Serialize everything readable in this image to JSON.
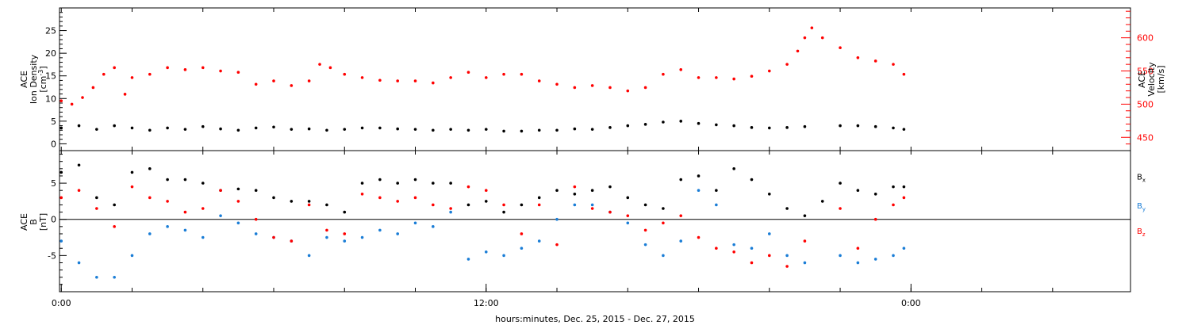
{
  "chart_data": [
    {
      "type": "scatter",
      "panel": "top",
      "left_axis": {
        "label_lines": [
          "ACE",
          "Ion Density"
        ],
        "unit_text": "[cm",
        "unit_sup": "-3",
        "ylim": [
          -1.5,
          30
        ],
        "ticks": [
          0,
          5,
          10,
          15,
          20,
          25
        ],
        "tick_labels": [
          "0",
          "5",
          "10",
          "15",
          "20",
          "25"
        ]
      },
      "right_axis": {
        "label_lines": [
          "ACE",
          "Velocity",
          "[km/s]"
        ],
        "ylim": [
          430,
          645
        ],
        "ticks": [
          450,
          500,
          550,
          600
        ],
        "tick_labels": [
          "450",
          "500",
          "550",
          "600"
        ]
      },
      "series": [
        {
          "color": "#000000",
          "axis": "left",
          "points": [
            [
              0.0,
              3.5
            ],
            [
              0.5,
              4.0
            ],
            [
              1.0,
              3.2
            ],
            [
              1.5,
              4.0
            ],
            [
              2.0,
              3.5
            ],
            [
              2.5,
              3.0
            ],
            [
              3.0,
              3.5
            ],
            [
              3.5,
              3.2
            ],
            [
              4.0,
              3.8
            ],
            [
              4.5,
              3.3
            ],
            [
              5.0,
              3.0
            ],
            [
              5.5,
              3.5
            ],
            [
              6.0,
              3.7
            ],
            [
              6.5,
              3.2
            ],
            [
              7.0,
              3.3
            ],
            [
              7.5,
              3.0
            ],
            [
              8.0,
              3.2
            ],
            [
              8.5,
              3.5
            ],
            [
              9.0,
              3.5
            ],
            [
              9.5,
              3.3
            ],
            [
              10.0,
              3.2
            ],
            [
              10.5,
              3.0
            ],
            [
              11.0,
              3.2
            ],
            [
              11.5,
              3.0
            ],
            [
              12.0,
              3.2
            ],
            [
              12.5,
              2.8
            ],
            [
              13.0,
              2.8
            ],
            [
              13.5,
              3.0
            ],
            [
              14.0,
              3.0
            ],
            [
              14.5,
              3.3
            ],
            [
              15.0,
              3.2
            ],
            [
              15.5,
              3.6
            ],
            [
              16.0,
              4.0
            ],
            [
              16.5,
              4.3
            ],
            [
              17.0,
              4.8
            ],
            [
              17.5,
              5.0
            ],
            [
              18.0,
              4.5
            ],
            [
              18.5,
              4.2
            ],
            [
              19.0,
              4.0
            ],
            [
              19.5,
              3.6
            ],
            [
              20.0,
              3.5
            ],
            [
              20.5,
              3.6
            ],
            [
              21.0,
              3.8
            ],
            [
              22.0,
              4.0
            ],
            [
              22.5,
              4.0
            ],
            [
              23.0,
              3.8
            ],
            [
              23.5,
              3.5
            ],
            [
              23.8,
              3.2
            ]
          ]
        },
        {
          "color": "#ff0000",
          "axis": "right",
          "points": [
            [
              0.0,
              505
            ],
            [
              0.3,
              500
            ],
            [
              0.6,
              510
            ],
            [
              0.9,
              525
            ],
            [
              1.2,
              545
            ],
            [
              1.5,
              555
            ],
            [
              1.8,
              515
            ],
            [
              2.0,
              540
            ],
            [
              2.5,
              545
            ],
            [
              3.0,
              555
            ],
            [
              3.5,
              552
            ],
            [
              4.0,
              555
            ],
            [
              4.5,
              550
            ],
            [
              5.0,
              548
            ],
            [
              5.5,
              530
            ],
            [
              6.0,
              535
            ],
            [
              6.5,
              528
            ],
            [
              7.0,
              535
            ],
            [
              7.3,
              560
            ],
            [
              7.6,
              555
            ],
            [
              8.0,
              545
            ],
            [
              8.5,
              540
            ],
            [
              9.0,
              536
            ],
            [
              9.5,
              535
            ],
            [
              10.0,
              535
            ],
            [
              10.5,
              532
            ],
            [
              11.0,
              540
            ],
            [
              11.5,
              548
            ],
            [
              12.0,
              540
            ],
            [
              12.5,
              545
            ],
            [
              13.0,
              545
            ],
            [
              13.5,
              535
            ],
            [
              14.0,
              530
            ],
            [
              14.5,
              525
            ],
            [
              15.0,
              528
            ],
            [
              15.5,
              525
            ],
            [
              16.0,
              520
            ],
            [
              16.5,
              525
            ],
            [
              17.0,
              545
            ],
            [
              17.5,
              552
            ],
            [
              18.0,
              540
            ],
            [
              18.5,
              540
            ],
            [
              19.0,
              538
            ],
            [
              19.5,
              542
            ],
            [
              20.0,
              550
            ],
            [
              20.5,
              560
            ],
            [
              20.8,
              580
            ],
            [
              21.0,
              600
            ],
            [
              21.2,
              615
            ],
            [
              21.5,
              600
            ],
            [
              22.0,
              585
            ],
            [
              22.5,
              570
            ],
            [
              23.0,
              565
            ],
            [
              23.5,
              560
            ],
            [
              23.8,
              545
            ]
          ]
        }
      ]
    },
    {
      "type": "scatter",
      "panel": "bottom",
      "y_axis": {
        "label_lines": [
          "ACE",
          "B"
        ],
        "unit_text": "[nT]",
        "ylim": [
          -10,
          9.5
        ],
        "ticks": [
          -5,
          0,
          5
        ],
        "tick_labels": [
          "-5",
          "0",
          "5"
        ]
      },
      "zero_line": true,
      "legend_position": "right",
      "series": [
        {
          "name": "B",
          "sub": "x",
          "color": "#000000",
          "points": [
            [
              0.0,
              6.5
            ],
            [
              0.5,
              7.5
            ],
            [
              1.0,
              3.0
            ],
            [
              1.5,
              2.0
            ],
            [
              2.0,
              6.5
            ],
            [
              2.5,
              7.0
            ],
            [
              3.0,
              5.5
            ],
            [
              3.5,
              5.5
            ],
            [
              4.0,
              5.0
            ],
            [
              4.5,
              4.0
            ],
            [
              5.0,
              4.2
            ],
            [
              5.5,
              4.0
            ],
            [
              6.0,
              3.0
            ],
            [
              6.5,
              2.5
            ],
            [
              7.0,
              2.5
            ],
            [
              7.5,
              2.0
            ],
            [
              8.0,
              1.0
            ],
            [
              8.5,
              5.0
            ],
            [
              9.0,
              5.5
            ],
            [
              9.5,
              5.0
            ],
            [
              10.0,
              5.5
            ],
            [
              10.5,
              5.0
            ],
            [
              11.0,
              5.0
            ],
            [
              11.5,
              2.0
            ],
            [
              12.0,
              2.5
            ],
            [
              12.5,
              1.0
            ],
            [
              13.0,
              2.0
            ],
            [
              13.5,
              3.0
            ],
            [
              14.0,
              4.0
            ],
            [
              14.5,
              3.5
            ],
            [
              15.0,
              4.0
            ],
            [
              15.5,
              4.5
            ],
            [
              16.0,
              3.0
            ],
            [
              16.5,
              2.0
            ],
            [
              17.0,
              1.5
            ],
            [
              17.5,
              5.5
            ],
            [
              18.0,
              6.0
            ],
            [
              18.5,
              4.0
            ],
            [
              19.0,
              7.0
            ],
            [
              19.5,
              5.5
            ],
            [
              20.0,
              3.5
            ],
            [
              20.5,
              1.5
            ],
            [
              21.0,
              0.5
            ],
            [
              21.5,
              2.5
            ],
            [
              22.0,
              5.0
            ],
            [
              22.5,
              4.0
            ],
            [
              23.0,
              3.5
            ],
            [
              23.5,
              4.5
            ],
            [
              23.8,
              4.5
            ]
          ]
        },
        {
          "name": "B",
          "sub": "y",
          "color": "#1a7dd6",
          "points": [
            [
              0.0,
              -3.0
            ],
            [
              0.5,
              -6.0
            ],
            [
              1.0,
              -8.0
            ],
            [
              1.5,
              -8.0
            ],
            [
              2.0,
              -5.0
            ],
            [
              2.5,
              -2.0
            ],
            [
              3.0,
              -1.0
            ],
            [
              3.5,
              -1.5
            ],
            [
              4.0,
              -2.5
            ],
            [
              4.5,
              0.5
            ],
            [
              5.0,
              -0.5
            ],
            [
              5.5,
              -2.0
            ],
            [
              6.0,
              -2.5
            ],
            [
              6.5,
              -3.0
            ],
            [
              7.0,
              -5.0
            ],
            [
              7.5,
              -2.5
            ],
            [
              8.0,
              -3.0
            ],
            [
              8.5,
              -2.5
            ],
            [
              9.0,
              -1.5
            ],
            [
              9.5,
              -2.0
            ],
            [
              10.0,
              -0.5
            ],
            [
              10.5,
              -1.0
            ],
            [
              11.0,
              1.0
            ],
            [
              11.5,
              -5.5
            ],
            [
              12.0,
              -4.5
            ],
            [
              12.5,
              -5.0
            ],
            [
              13.0,
              -4.0
            ],
            [
              13.5,
              -3.0
            ],
            [
              14.0,
              0.0
            ],
            [
              14.5,
              2.0
            ],
            [
              15.0,
              2.0
            ],
            [
              15.5,
              1.0
            ],
            [
              16.0,
              -0.5
            ],
            [
              16.5,
              -3.5
            ],
            [
              17.0,
              -5.0
            ],
            [
              17.5,
              -3.0
            ],
            [
              18.0,
              4.0
            ],
            [
              18.5,
              2.0
            ],
            [
              19.0,
              -3.5
            ],
            [
              19.5,
              -4.0
            ],
            [
              20.0,
              -2.0
            ],
            [
              20.5,
              -5.0
            ],
            [
              21.0,
              -6.0
            ],
            [
              22.0,
              -5.0
            ],
            [
              22.5,
              -6.0
            ],
            [
              23.0,
              -5.5
            ],
            [
              23.5,
              -5.0
            ],
            [
              23.8,
              -4.0
            ]
          ]
        },
        {
          "name": "B",
          "sub": "z",
          "color": "#ff0000",
          "points": [
            [
              0.0,
              3.0
            ],
            [
              0.5,
              4.0
            ],
            [
              1.0,
              1.5
            ],
            [
              1.5,
              -1.0
            ],
            [
              2.0,
              4.5
            ],
            [
              2.5,
              3.0
            ],
            [
              3.0,
              2.5
            ],
            [
              3.5,
              1.0
            ],
            [
              4.0,
              1.5
            ],
            [
              4.5,
              4.0
            ],
            [
              5.0,
              2.5
            ],
            [
              5.5,
              0.0
            ],
            [
              6.0,
              -2.5
            ],
            [
              6.5,
              -3.0
            ],
            [
              7.0,
              2.0
            ],
            [
              7.5,
              -1.5
            ],
            [
              8.0,
              -2.0
            ],
            [
              8.5,
              3.5
            ],
            [
              9.0,
              3.0
            ],
            [
              9.5,
              2.5
            ],
            [
              10.0,
              3.0
            ],
            [
              10.5,
              2.0
            ],
            [
              11.0,
              1.5
            ],
            [
              11.5,
              4.5
            ],
            [
              12.0,
              4.0
            ],
            [
              12.5,
              2.0
            ],
            [
              13.0,
              -2.0
            ],
            [
              13.5,
              2.0
            ],
            [
              14.0,
              -3.5
            ],
            [
              14.5,
              4.5
            ],
            [
              15.0,
              1.5
            ],
            [
              15.5,
              1.0
            ],
            [
              16.0,
              0.5
            ],
            [
              16.5,
              -1.5
            ],
            [
              17.0,
              -0.5
            ],
            [
              17.5,
              0.5
            ],
            [
              18.0,
              -2.5
            ],
            [
              18.5,
              -4.0
            ],
            [
              19.0,
              -4.5
            ],
            [
              19.5,
              -6.0
            ],
            [
              20.0,
              -5.0
            ],
            [
              20.5,
              -6.5
            ],
            [
              21.0,
              -3.0
            ],
            [
              22.0,
              1.5
            ],
            [
              22.5,
              -4.0
            ],
            [
              23.0,
              0.0
            ],
            [
              23.5,
              2.0
            ],
            [
              23.8,
              3.0
            ]
          ]
        }
      ]
    }
  ],
  "x_axis": {
    "xlim": [
      -0.05,
      30.2
    ],
    "tick_labels": [
      {
        "x": 0,
        "label": "0:00"
      },
      {
        "x": 12,
        "label": "12:00"
      },
      {
        "x": 24,
        "label": "0:00"
      }
    ],
    "minor_ticks": [
      0,
      2,
      4,
      6,
      8,
      10,
      12,
      14,
      16,
      18,
      20,
      22,
      24,
      26,
      28
    ],
    "title": "hours:minutes, Dec. 25, 2015 - Dec. 27, 2015"
  },
  "colors": {
    "black": "#000000",
    "red": "#ff0000",
    "blue": "#1a7dd6"
  }
}
